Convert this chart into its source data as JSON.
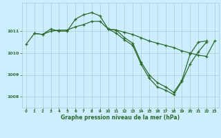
{
  "bg_color": "#cceeff",
  "line_color": "#2d6a2d",
  "grid_color": "#aacccc",
  "tick_color": "#2d6a2d",
  "xlabel": "Graphe pression niveau de la mer (hPa)",
  "xlim": [
    -0.5,
    23.5
  ],
  "ylim": [
    1007.5,
    1012.3
  ],
  "yticks": [
    1008,
    1009,
    1010,
    1011
  ],
  "xticks": [
    0,
    1,
    2,
    3,
    4,
    5,
    6,
    7,
    8,
    9,
    10,
    11,
    12,
    13,
    14,
    15,
    16,
    17,
    18,
    19,
    20,
    21,
    22,
    23
  ],
  "series1": [
    1010.4,
    1010.9,
    1010.85,
    1011.1,
    1011.0,
    1011.0,
    1011.55,
    1011.75,
    1011.85,
    1011.7,
    1011.1,
    1011.05,
    1010.7,
    1010.45,
    1009.6,
    1009.0,
    1008.65,
    1008.45,
    1008.2,
    1008.75,
    1009.95,
    1010.5,
    1010.55,
    null
  ],
  "series2": [
    null,
    1010.9,
    1010.85,
    1011.0,
    1011.05,
    1011.05,
    1011.2,
    1011.3,
    1011.45,
    1011.45,
    1011.1,
    1010.9,
    1010.6,
    1010.35,
    1009.5,
    1008.85,
    1008.45,
    1008.3,
    1008.1,
    1008.7,
    1009.5,
    1010.05,
    1010.5,
    null
  ],
  "series3": [
    null,
    null,
    null,
    null,
    null,
    null,
    null,
    null,
    null,
    null,
    1011.1,
    1011.05,
    1010.95,
    1010.85,
    1010.7,
    1010.55,
    1010.45,
    1010.35,
    1010.25,
    1010.1,
    1010.0,
    1009.9,
    1009.85,
    1010.55
  ],
  "figsize": [
    3.2,
    2.0
  ],
  "dpi": 100
}
